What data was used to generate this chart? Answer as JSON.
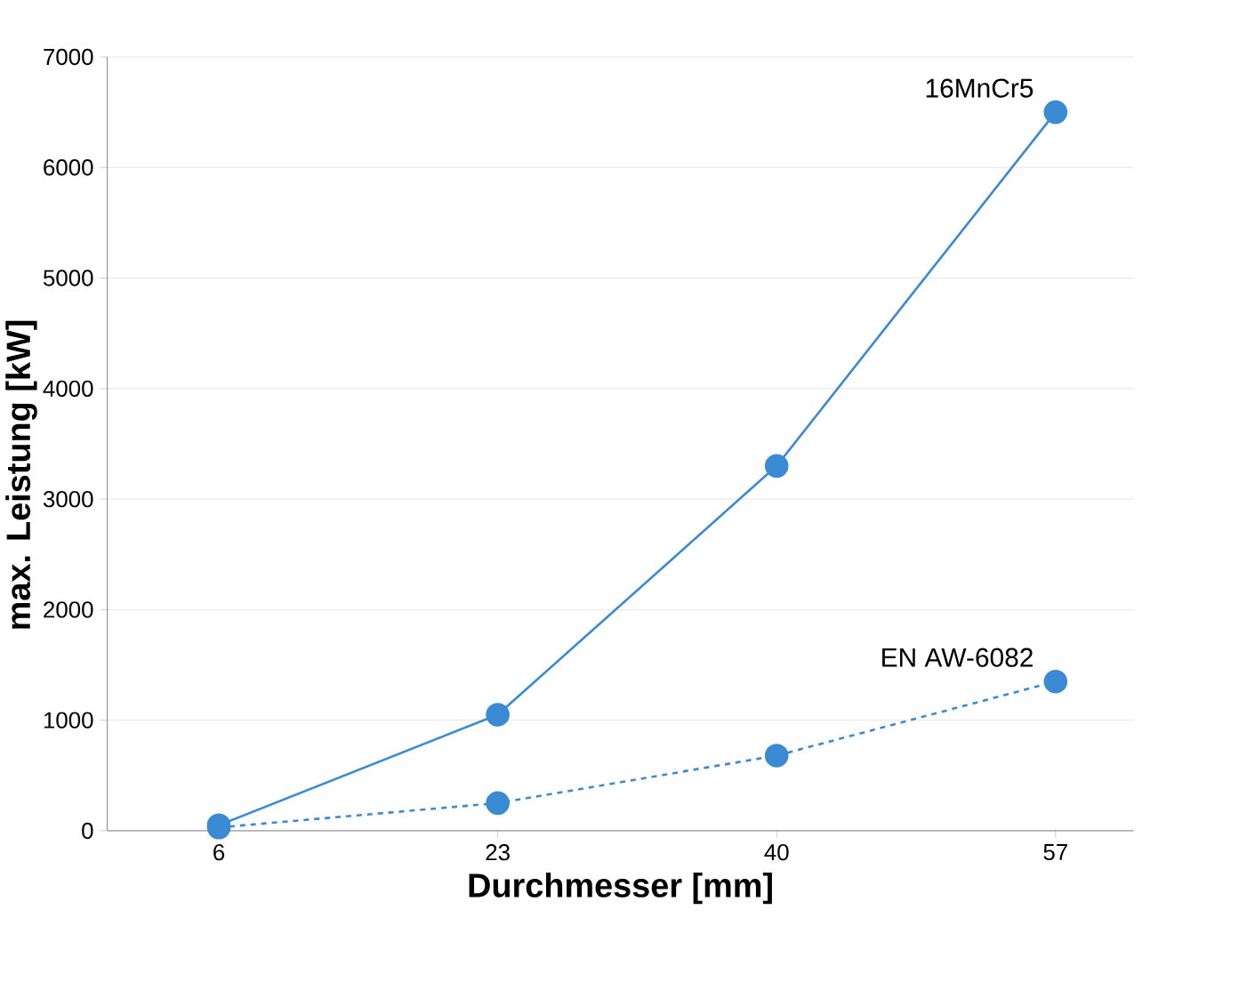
{
  "chart_data": {
    "type": "line",
    "xlabel": "Durchmesser [mm]",
    "ylabel": "max. Leistung [kW]",
    "categories": [
      "6",
      "23",
      "40",
      "57"
    ],
    "series": [
      {
        "name": "16MnCr5",
        "color": "#3a8ad4",
        "values": [
          50,
          1050,
          3300,
          6500
        ],
        "line_style": "solid"
      },
      {
        "name": "EN AW-6082",
        "color": "#3a8ad4",
        "values": [
          30,
          250,
          680,
          1350
        ],
        "line_style": "dashed"
      }
    ],
    "ylim": [
      0,
      7000
    ],
    "yticks": [
      0,
      1000,
      2000,
      3000,
      4000,
      5000,
      6000,
      7000
    ],
    "grid": "y",
    "legend": false,
    "marker": "circle"
  }
}
